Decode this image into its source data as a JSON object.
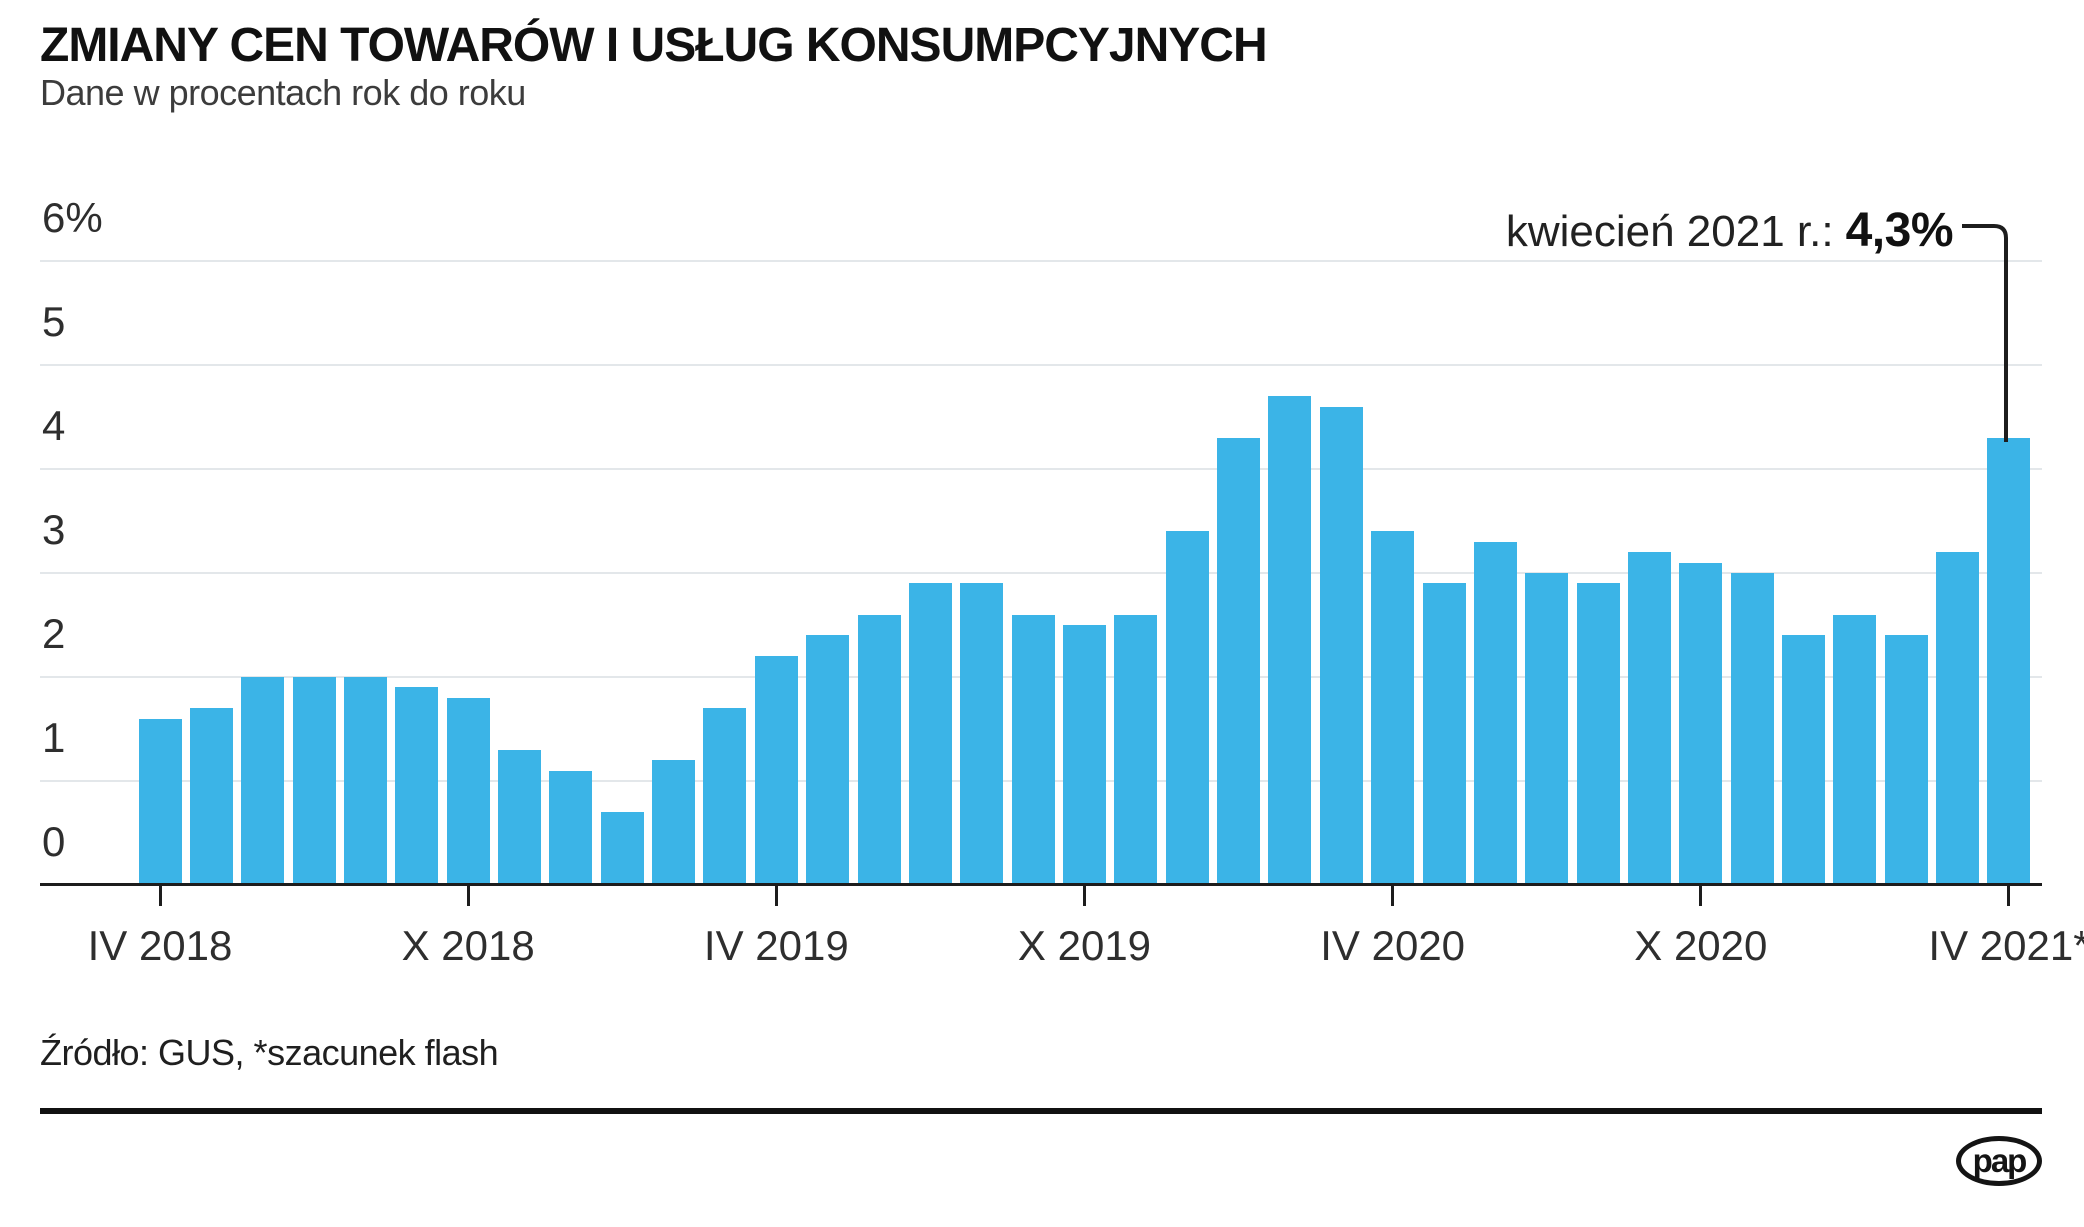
{
  "header": {
    "title": "ZMIANY CEN TOWARÓW I USŁUG KONSUMPCYJNYCH",
    "subtitle": "Dane w procentach rok do roku"
  },
  "annotation": {
    "label": "kwiecień 2021 r.:",
    "value": "4,3%",
    "points_to": "IV 2021"
  },
  "source": "Źródło: GUS, *szacunek flash",
  "logo_text": "pap",
  "colors": {
    "bar": "#3BB4E7",
    "grid": "#E3E7EA",
    "axis": "#1D1D1D",
    "text": "#1A1A1A"
  },
  "chart_data": {
    "type": "bar",
    "title": "ZMIANY CEN TOWARÓW I USŁUG KONSUMPCYJNYCH",
    "subtitle": "Dane w procentach rok do roku",
    "unit": "%",
    "ylim": [
      0,
      6
    ],
    "grid": true,
    "y_ticks": [
      {
        "value": 6,
        "label": "6%"
      },
      {
        "value": 5,
        "label": "5"
      },
      {
        "value": 4,
        "label": "4"
      },
      {
        "value": 3,
        "label": "3"
      },
      {
        "value": 2,
        "label": "2"
      },
      {
        "value": 1,
        "label": "1"
      },
      {
        "value": 0,
        "label": "0"
      }
    ],
    "x_ticks": [
      {
        "index": 0,
        "label": "IV 2018"
      },
      {
        "index": 6,
        "label": "X 2018"
      },
      {
        "index": 12,
        "label": "IV 2019"
      },
      {
        "index": 18,
        "label": "X 2019"
      },
      {
        "index": 24,
        "label": "IV 2020"
      },
      {
        "index": 30,
        "label": "X 2020"
      },
      {
        "index": 36,
        "label": "IV 2021*"
      }
    ],
    "categories": [
      "IV 2018",
      "V 2018",
      "VI 2018",
      "VII 2018",
      "VIII 2018",
      "IX 2018",
      "X 2018",
      "XI 2018",
      "XII 2018",
      "I 2019",
      "II 2019",
      "III 2019",
      "IV 2019",
      "V 2019",
      "VI 2019",
      "VII 2019",
      "VIII 2019",
      "IX 2019",
      "X 2019",
      "XI 2019",
      "XII 2019",
      "I 2020",
      "II 2020",
      "III 2020",
      "IV 2020",
      "V 2020",
      "VI 2020",
      "VII 2020",
      "VIII 2020",
      "IX 2020",
      "X 2020",
      "XI 2020",
      "XII 2020",
      "I 2021",
      "II 2021",
      "III 2021",
      "IV 2021"
    ],
    "values": [
      1.6,
      1.7,
      2.0,
      2.0,
      2.0,
      1.9,
      1.8,
      1.3,
      1.1,
      0.7,
      1.2,
      1.7,
      2.2,
      2.4,
      2.6,
      2.9,
      2.9,
      2.6,
      2.5,
      2.6,
      3.4,
      4.3,
      4.7,
      4.6,
      3.4,
      2.9,
      3.3,
      3.0,
      2.9,
      3.2,
      3.1,
      3.0,
      2.4,
      2.6,
      2.4,
      3.2,
      4.3
    ]
  }
}
